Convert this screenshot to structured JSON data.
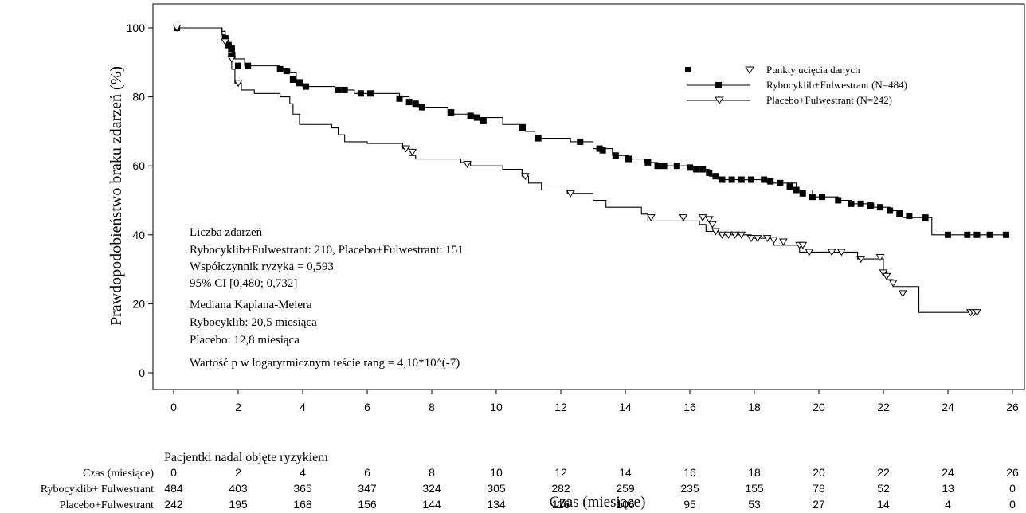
{
  "chart_data": {
    "type": "line",
    "subtype": "kaplan-meier",
    "xlabel": "Czas (miesiące)",
    "ylabel": "Prawdopodobieństwo braku zdarzeń (%)",
    "xlim": [
      0,
      26
    ],
    "ylim": [
      0,
      100
    ],
    "x_ticks": [
      "0",
      "2",
      "4",
      "6",
      "8",
      "10",
      "12",
      "14",
      "16",
      "18",
      "20",
      "22",
      "24",
      "26"
    ],
    "y_ticks": [
      "0",
      "20",
      "40",
      "60",
      "80",
      "100"
    ],
    "legend": {
      "placement": "top-right",
      "censor_label": "Punkty ucięcia danych",
      "entries": [
        "Rybocyklib+Fulwestrant (N=484)",
        "Placebo+Fulwestrant (N=242)"
      ]
    },
    "annotations": [
      "Liczba zdarzeń",
      "Rybocyklib+Fulwestrant: 210, Placebo+Fulwestrant: 151",
      "Współczynnik ryzyka = 0,593",
      "95% CI [0,480; 0,732]",
      "Mediana Kaplana-Meiera",
      "Rybocyklib: 20,5 miesiąca",
      "Placebo: 12,8 miesiąca",
      "Wartość p w logarytmicznym teście rang = 4,10*10^(-7)"
    ],
    "series": [
      {
        "name": "Rybocyklib+Fulwestrant (N=484)",
        "marker": "square",
        "color": "#000000",
        "steps": [
          [
            0,
            100
          ],
          [
            0.8,
            100
          ],
          [
            1.5,
            99
          ],
          [
            1.6,
            97
          ],
          [
            1.7,
            95
          ],
          [
            1.8,
            93
          ],
          [
            1.9,
            91
          ],
          [
            2.2,
            89
          ],
          [
            3.3,
            88
          ],
          [
            3.6,
            87
          ],
          [
            3.8,
            85
          ],
          [
            4.0,
            83
          ],
          [
            5.0,
            82
          ],
          [
            5.6,
            81
          ],
          [
            7.0,
            80
          ],
          [
            7.3,
            78
          ],
          [
            7.6,
            77
          ],
          [
            8.5,
            75
          ],
          [
            9.3,
            74
          ],
          [
            10.2,
            72
          ],
          [
            10.9,
            70
          ],
          [
            11.2,
            68
          ],
          [
            12.3,
            67
          ],
          [
            13.0,
            65
          ],
          [
            13.6,
            63
          ],
          [
            14.1,
            62
          ],
          [
            14.6,
            61
          ],
          [
            15.0,
            60
          ],
          [
            16.1,
            59
          ],
          [
            16.6,
            57
          ],
          [
            16.9,
            56
          ],
          [
            18.4,
            55
          ],
          [
            19.3,
            53
          ],
          [
            19.8,
            51
          ],
          [
            20.6,
            50
          ],
          [
            21.0,
            49
          ],
          [
            21.7,
            48
          ],
          [
            22.2,
            47
          ],
          [
            22.6,
            45
          ],
          [
            23.5,
            40
          ],
          [
            25.8,
            40
          ]
        ],
        "censored": [
          [
            0.1,
            100
          ],
          [
            1.6,
            97
          ],
          [
            1.7,
            95
          ],
          [
            1.8,
            94
          ],
          [
            1.8,
            92
          ],
          [
            2.0,
            89
          ],
          [
            2.3,
            89
          ],
          [
            3.3,
            88
          ],
          [
            3.5,
            87.5
          ],
          [
            3.7,
            85
          ],
          [
            3.9,
            84
          ],
          [
            4.1,
            83
          ],
          [
            5.1,
            82
          ],
          [
            5.3,
            82
          ],
          [
            5.8,
            81
          ],
          [
            6.1,
            81
          ],
          [
            7.0,
            79.5
          ],
          [
            7.3,
            78.5
          ],
          [
            7.5,
            78
          ],
          [
            7.7,
            77
          ],
          [
            8.6,
            75.5
          ],
          [
            9.2,
            74.5
          ],
          [
            9.4,
            74
          ],
          [
            9.6,
            73
          ],
          [
            10.8,
            71
          ],
          [
            11.3,
            68
          ],
          [
            12.6,
            67
          ],
          [
            13.2,
            65
          ],
          [
            13.3,
            64.5
          ],
          [
            13.7,
            63
          ],
          [
            14.1,
            62
          ],
          [
            14.7,
            61
          ],
          [
            15.0,
            60
          ],
          [
            15.2,
            60
          ],
          [
            15.6,
            60
          ],
          [
            16.0,
            59.5
          ],
          [
            16.2,
            59
          ],
          [
            16.4,
            59
          ],
          [
            16.6,
            58
          ],
          [
            16.8,
            57
          ],
          [
            17.0,
            56
          ],
          [
            17.3,
            56
          ],
          [
            17.6,
            56
          ],
          [
            17.9,
            56
          ],
          [
            18.3,
            56
          ],
          [
            18.5,
            55.5
          ],
          [
            18.8,
            55
          ],
          [
            19.1,
            54
          ],
          [
            19.3,
            53
          ],
          [
            19.5,
            52
          ],
          [
            19.8,
            51
          ],
          [
            20.1,
            51
          ],
          [
            20.6,
            50
          ],
          [
            21.0,
            49
          ],
          [
            21.3,
            49
          ],
          [
            21.6,
            48.5
          ],
          [
            21.9,
            48
          ],
          [
            22.2,
            47
          ],
          [
            22.5,
            46
          ],
          [
            22.8,
            45.5
          ],
          [
            23.3,
            45
          ],
          [
            24.0,
            40
          ],
          [
            24.6,
            40
          ],
          [
            24.9,
            40
          ],
          [
            25.3,
            40
          ],
          [
            25.8,
            40
          ]
        ]
      },
      {
        "name": "Placebo+Fulwestrant (N=242)",
        "marker": "triangle-down",
        "color": "#000000",
        "steps": [
          [
            0,
            100
          ],
          [
            1.5,
            98
          ],
          [
            1.6,
            95
          ],
          [
            1.7,
            92
          ],
          [
            1.8,
            88
          ],
          [
            1.9,
            84
          ],
          [
            2.1,
            82
          ],
          [
            2.5,
            81
          ],
          [
            3.3,
            80
          ],
          [
            3.6,
            78
          ],
          [
            3.7,
            75
          ],
          [
            3.9,
            72
          ],
          [
            4.9,
            71
          ],
          [
            5.1,
            69
          ],
          [
            5.3,
            67
          ],
          [
            6.0,
            66.5
          ],
          [
            7.1,
            65
          ],
          [
            7.3,
            63
          ],
          [
            7.5,
            62
          ],
          [
            8.9,
            61
          ],
          [
            9.2,
            60
          ],
          [
            10.2,
            59
          ],
          [
            10.8,
            57
          ],
          [
            11.0,
            55
          ],
          [
            11.4,
            53
          ],
          [
            12.2,
            52
          ],
          [
            13.0,
            50
          ],
          [
            13.4,
            48
          ],
          [
            14.5,
            46
          ],
          [
            14.7,
            44
          ],
          [
            16.3,
            43
          ],
          [
            16.5,
            41
          ],
          [
            16.9,
            40
          ],
          [
            17.9,
            39
          ],
          [
            18.6,
            37
          ],
          [
            19.4,
            35
          ],
          [
            21.2,
            33
          ],
          [
            22.0,
            29
          ],
          [
            22.1,
            27
          ],
          [
            22.3,
            25
          ],
          [
            23.1,
            17.5
          ],
          [
            24.9,
            17.5
          ]
        ],
        "censored": [
          [
            0.1,
            100
          ],
          [
            1.6,
            96
          ],
          [
            1.8,
            91
          ],
          [
            2.0,
            84
          ],
          [
            7.2,
            65
          ],
          [
            7.4,
            64
          ],
          [
            9.1,
            60.5
          ],
          [
            10.9,
            57
          ],
          [
            12.3,
            52
          ],
          [
            14.8,
            45
          ],
          [
            15.8,
            45
          ],
          [
            16.4,
            45
          ],
          [
            16.6,
            44.5
          ],
          [
            16.7,
            43
          ],
          [
            16.8,
            41
          ],
          [
            17.0,
            40
          ],
          [
            17.2,
            40
          ],
          [
            17.4,
            40
          ],
          [
            17.6,
            40
          ],
          [
            17.9,
            39
          ],
          [
            18.1,
            39
          ],
          [
            18.4,
            39
          ],
          [
            18.6,
            38.5
          ],
          [
            18.9,
            38
          ],
          [
            19.4,
            37
          ],
          [
            19.5,
            37
          ],
          [
            19.7,
            35
          ],
          [
            20.4,
            35
          ],
          [
            20.7,
            35
          ],
          [
            21.3,
            33
          ],
          [
            21.9,
            33.5
          ],
          [
            22.0,
            29
          ],
          [
            22.1,
            28
          ],
          [
            22.3,
            26
          ],
          [
            22.6,
            23
          ],
          [
            24.7,
            17.5
          ],
          [
            24.8,
            17.5
          ],
          [
            24.9,
            17.5
          ]
        ]
      }
    ],
    "risk_table": {
      "title": "Pacjentki nadal objęte ryzykiem",
      "rows": [
        {
          "label": "Czas (miesiące)",
          "values": [
            "0",
            "2",
            "4",
            "6",
            "8",
            "10",
            "12",
            "14",
            "16",
            "18",
            "20",
            "22",
            "24",
            "26"
          ]
        },
        {
          "label": "Rybocyklib+ Fulwestrant",
          "values": [
            "484",
            "403",
            "365",
            "347",
            "324",
            "305",
            "282",
            "259",
            "235",
            "155",
            "78",
            "52",
            "13",
            "0"
          ]
        },
        {
          "label": "Placebo+Fulwestrant",
          "values": [
            "242",
            "195",
            "168",
            "156",
            "144",
            "134",
            "116",
            "106",
            "95",
            "53",
            "27",
            "14",
            "4",
            "0"
          ]
        }
      ]
    }
  }
}
